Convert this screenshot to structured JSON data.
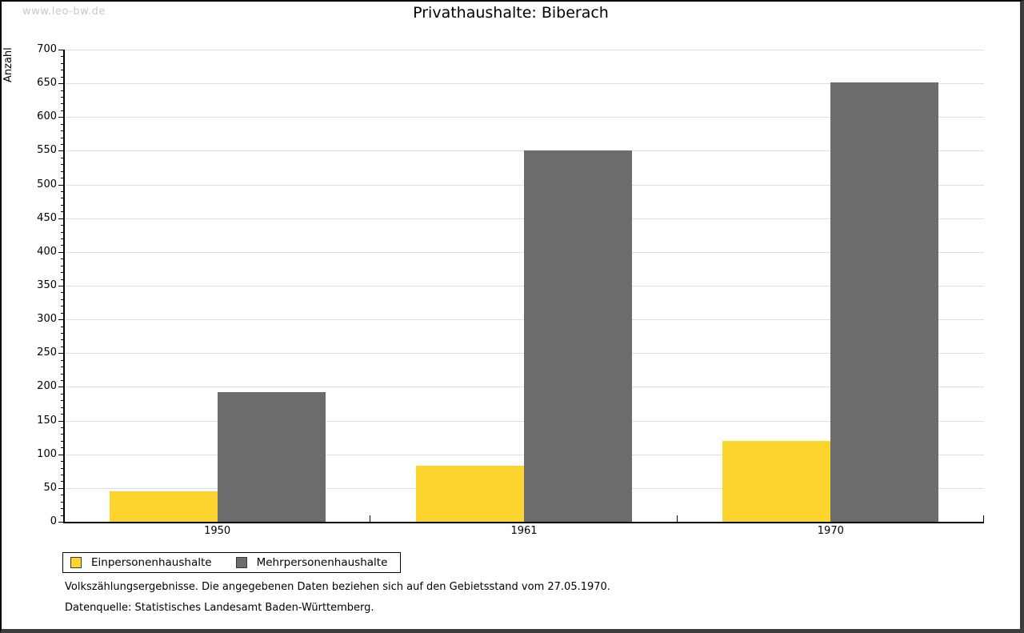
{
  "watermark": "www.leo-bw.de",
  "chart_data": {
    "type": "bar",
    "title": "Privathaushalte: Biberach",
    "ylabel": "Anzahl",
    "xlabel": "",
    "categories": [
      "1950",
      "1961",
      "1970"
    ],
    "series": [
      {
        "name": "Einpersonenhaushalte",
        "color": "#fcd42d",
        "values": [
          45,
          83,
          120
        ]
      },
      {
        "name": "Mehrpersonenhaushalte",
        "color": "#6c6c6c",
        "values": [
          192,
          550,
          651
        ]
      }
    ],
    "ylim": [
      0,
      700
    ],
    "y_major_step": 50,
    "y_minor_step": 10,
    "grid": "horizontal-major",
    "legend_position": "bottom-left"
  },
  "footnotes": {
    "line1": "Volkszählungsergebnisse. Die angegebenen Daten beziehen sich auf den Gebietsstand vom 27.05.1970.",
    "line2": "Datenquelle: Statistisches Landesamt Baden-Württemberg."
  },
  "colors": {
    "series1": "#fcd42d",
    "series2": "#6c6c6c",
    "gridline": "#dedede",
    "axis": "#000000",
    "watermark": "#c9c9c9",
    "frame_border": "#000000",
    "frame_shadow": "#3c3c3c",
    "background": "#ffffff"
  }
}
